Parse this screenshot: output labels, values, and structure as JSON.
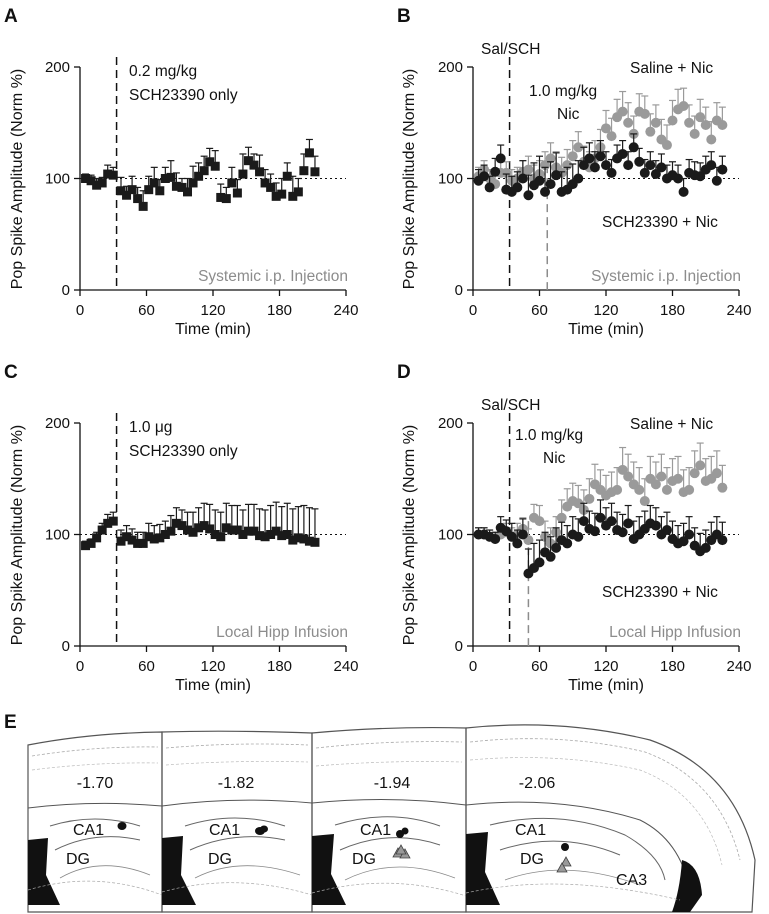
{
  "colors": {
    "black_series": "#1a1a1a",
    "gray_series": "#9a9a9a",
    "annotation_gray": "#8c8c8c",
    "outline": "#555555"
  },
  "panel_letters": [
    "A",
    "B",
    "C",
    "D",
    "E"
  ],
  "chart_data": [
    {
      "panel": "A",
      "type": "scatter",
      "ylabel": "Pop Spike Amplitude (Norm %)",
      "xlabel": "Time (min)",
      "xlim": [
        0,
        240
      ],
      "ylim": [
        0,
        200
      ],
      "xticks": [
        0,
        60,
        120,
        180,
        240
      ],
      "yticks": [
        0,
        100,
        200
      ],
      "reference_line_y": 100,
      "event_line_x": 33,
      "annotations": [
        "0.2 mg/kg",
        "SCH23390 only"
      ],
      "footnote": "Systemic i.p. Injection",
      "series": [
        {
          "marker": "square",
          "color": "#1a1a1a",
          "x": [
            5,
            10,
            15,
            20,
            25,
            30,
            37,
            42,
            47,
            52,
            57,
            62,
            67,
            72,
            77,
            82,
            87,
            92,
            97,
            102,
            107,
            112,
            117,
            122,
            127,
            132,
            137,
            142,
            147,
            152,
            157,
            162,
            167,
            172,
            177,
            182,
            187,
            192,
            197,
            202,
            207,
            212
          ],
          "y": [
            100,
            98,
            94,
            96,
            104,
            103,
            89,
            85,
            90,
            82,
            75,
            90,
            96,
            89,
            100,
            101,
            93,
            92,
            88,
            96,
            102,
            107,
            115,
            111,
            83,
            82,
            96,
            87,
            104,
            116,
            112,
            106,
            96,
            92,
            84,
            86,
            102,
            84,
            88,
            107,
            123,
            106
          ],
          "err": [
            4,
            5,
            6,
            5,
            8,
            7,
            12,
            8,
            12,
            10,
            14,
            12,
            14,
            10,
            10,
            15,
            12,
            8,
            12,
            15,
            12,
            13,
            12,
            14,
            12,
            10,
            14,
            12,
            18,
            12,
            10,
            15,
            12,
            12,
            12,
            14,
            12,
            18,
            12,
            15,
            12,
            14
          ]
        }
      ]
    },
    {
      "panel": "B",
      "type": "scatter",
      "ylabel": "Pop Spike Amplitude (Norm %)",
      "xlabel": "Time (min)",
      "xlim": [
        0,
        240
      ],
      "ylim": [
        0,
        200
      ],
      "xticks": [
        0,
        60,
        120,
        180,
        240
      ],
      "yticks": [
        0,
        100,
        200
      ],
      "reference_line_y": 100,
      "event_line_x": 33,
      "event_line_2_x": 67,
      "event_label_1": "Sal/SCH",
      "event_label_2": [
        "1.0 mg/kg",
        "Nic"
      ],
      "footnote": "Systemic i.p. Injection",
      "series": [
        {
          "name": "Saline + Nic",
          "marker": "circle",
          "color": "#9a9a9a",
          "x": [
            5,
            10,
            15,
            20,
            25,
            30,
            35,
            40,
            45,
            50,
            55,
            60,
            65,
            70,
            75,
            80,
            85,
            90,
            95,
            100,
            105,
            110,
            115,
            120,
            125,
            130,
            135,
            140,
            145,
            150,
            155,
            160,
            165,
            170,
            175,
            180,
            185,
            190,
            195,
            200,
            205,
            210,
            215,
            220,
            225
          ],
          "y": [
            102,
            108,
            100,
            95,
            105,
            105,
            98,
            100,
            106,
            108,
            100,
            104,
            112,
            118,
            110,
            105,
            112,
            120,
            128,
            115,
            110,
            118,
            128,
            145,
            138,
            155,
            160,
            150,
            140,
            160,
            158,
            142,
            150,
            135,
            130,
            152,
            162,
            165,
            150,
            140,
            155,
            148,
            135,
            152,
            148
          ],
          "err": [
            8,
            8,
            8,
            10,
            10,
            10,
            10,
            10,
            10,
            12,
            12,
            12,
            12,
            14,
            14,
            14,
            14,
            14,
            14,
            14,
            14,
            16,
            16,
            16,
            16,
            16,
            18,
            18,
            16,
            16,
            16,
            16,
            16,
            18,
            18,
            18,
            18,
            16,
            16,
            16,
            16,
            16,
            16,
            16,
            16
          ]
        },
        {
          "name": "SCH23390 + Nic",
          "marker": "circle",
          "color": "#1a1a1a",
          "x": [
            5,
            10,
            15,
            20,
            25,
            30,
            35,
            40,
            45,
            50,
            55,
            60,
            65,
            70,
            75,
            80,
            85,
            90,
            95,
            100,
            105,
            110,
            115,
            120,
            125,
            130,
            135,
            140,
            145,
            150,
            155,
            160,
            165,
            170,
            175,
            180,
            185,
            190,
            195,
            200,
            205,
            210,
            215,
            220,
            225
          ],
          "y": [
            98,
            102,
            92,
            106,
            118,
            90,
            88,
            92,
            100,
            85,
            94,
            98,
            88,
            95,
            103,
            88,
            90,
            95,
            100,
            112,
            118,
            110,
            120,
            112,
            105,
            118,
            122,
            112,
            128,
            115,
            105,
            112,
            104,
            110,
            100,
            103,
            100,
            88,
            105,
            103,
            102,
            108,
            112,
            98,
            108
          ],
          "err": [
            10,
            10,
            10,
            12,
            12,
            14,
            14,
            14,
            16,
            18,
            20,
            22,
            22,
            20,
            20,
            18,
            20,
            18,
            16,
            16,
            14,
            14,
            14,
            12,
            12,
            12,
            12,
            12,
            12,
            12,
            12,
            12,
            12,
            12,
            12,
            12,
            12,
            12,
            12,
            12,
            12,
            12,
            12,
            12,
            12
          ]
        }
      ]
    },
    {
      "panel": "C",
      "type": "scatter",
      "ylabel": "Pop Spike Amplitude (Norm %)",
      "xlabel": "Time (min)",
      "xlim": [
        0,
        240
      ],
      "ylim": [
        0,
        200
      ],
      "xticks": [
        0,
        60,
        120,
        180,
        240
      ],
      "yticks": [
        0,
        100,
        200
      ],
      "reference_line_y": 100,
      "event_line_x": 33,
      "annotations": [
        "1.0 μg",
        "SCH23390 only"
      ],
      "footnote": "Local Hipp Infusion",
      "series": [
        {
          "marker": "square",
          "color": "#1a1a1a",
          "x": [
            5,
            10,
            15,
            20,
            25,
            30,
            37,
            42,
            47,
            52,
            57,
            62,
            67,
            72,
            77,
            82,
            87,
            92,
            97,
            102,
            107,
            112,
            117,
            122,
            127,
            132,
            137,
            142,
            147,
            152,
            157,
            162,
            167,
            172,
            177,
            182,
            187,
            192,
            197,
            202,
            207,
            212
          ],
          "y": [
            90,
            92,
            97,
            104,
            110,
            112,
            94,
            98,
            95,
            92,
            92,
            98,
            96,
            97,
            100,
            103,
            110,
            108,
            104,
            102,
            106,
            108,
            105,
            100,
            98,
            106,
            104,
            104,
            100,
            103,
            103,
            99,
            98,
            100,
            103,
            99,
            100,
            95,
            97,
            96,
            94,
            93
          ],
          "err": [
            4,
            4,
            5,
            6,
            8,
            8,
            10,
            10,
            10,
            10,
            10,
            12,
            12,
            12,
            12,
            14,
            14,
            14,
            16,
            18,
            18,
            20,
            22,
            22,
            22,
            22,
            22,
            22,
            22,
            24,
            24,
            24,
            24,
            26,
            26,
            26,
            28,
            28,
            28,
            30,
            30,
            30
          ]
        }
      ]
    },
    {
      "panel": "D",
      "type": "scatter",
      "ylabel": "Pop Spike Amplitude (Norm %)",
      "xlabel": "Time (min)",
      "xlim": [
        0,
        240
      ],
      "ylim": [
        0,
        200
      ],
      "xticks": [
        0,
        60,
        120,
        180,
        240
      ],
      "yticks": [
        0,
        100,
        200
      ],
      "reference_line_y": 100,
      "event_line_x": 33,
      "event_line_2_x": 50,
      "event_label_1": "Sal/SCH",
      "event_label_2": [
        "1.0 mg/kg",
        "Nic"
      ],
      "footnote": "Local Hipp Infusion",
      "series": [
        {
          "name": "Saline + Nic",
          "marker": "circle",
          "color": "#9a9a9a",
          "x": [
            5,
            10,
            15,
            20,
            25,
            30,
            35,
            40,
            45,
            50,
            55,
            60,
            65,
            70,
            75,
            80,
            85,
            90,
            95,
            100,
            105,
            110,
            115,
            120,
            125,
            130,
            135,
            140,
            145,
            150,
            155,
            160,
            165,
            170,
            175,
            180,
            185,
            190,
            195,
            200,
            205,
            210,
            215,
            220,
            225
          ],
          "y": [
            100,
            100,
            98,
            96,
            100,
            102,
            98,
            100,
            105,
            95,
            115,
            112,
            98,
            92,
            102,
            115,
            125,
            130,
            128,
            122,
            132,
            145,
            140,
            135,
            138,
            140,
            158,
            152,
            145,
            140,
            130,
            150,
            145,
            152,
            140,
            148,
            150,
            138,
            140,
            155,
            162,
            148,
            150,
            155,
            142
          ],
          "err": [
            6,
            6,
            6,
            6,
            8,
            8,
            8,
            10,
            10,
            10,
            12,
            14,
            14,
            14,
            14,
            16,
            16,
            16,
            16,
            18,
            18,
            18,
            18,
            18,
            18,
            20,
            20,
            20,
            20,
            20,
            20,
            20,
            20,
            20,
            20,
            20,
            20,
            20,
            20,
            20,
            20,
            20,
            20,
            20,
            20
          ]
        },
        {
          "name": "SCH23390 + Nic",
          "marker": "circle",
          "color": "#1a1a1a",
          "x": [
            5,
            10,
            15,
            20,
            25,
            30,
            35,
            40,
            45,
            50,
            55,
            60,
            65,
            70,
            75,
            80,
            85,
            90,
            95,
            100,
            105,
            110,
            115,
            120,
            125,
            130,
            135,
            140,
            145,
            150,
            155,
            160,
            165,
            170,
            175,
            180,
            185,
            190,
            195,
            200,
            205,
            210,
            215,
            220,
            225
          ],
          "y": [
            100,
            100,
            98,
            96,
            106,
            103,
            98,
            92,
            100,
            65,
            70,
            75,
            84,
            80,
            88,
            95,
            92,
            100,
            98,
            112,
            105,
            103,
            115,
            108,
            112,
            104,
            102,
            110,
            96,
            100,
            105,
            110,
            108,
            100,
            104,
            96,
            92,
            94,
            100,
            90,
            85,
            88,
            95,
            100,
            95
          ],
          "err": [
            6,
            6,
            6,
            6,
            10,
            10,
            12,
            12,
            14,
            22,
            22,
            20,
            18,
            18,
            18,
            16,
            16,
            16,
            16,
            16,
            16,
            16,
            16,
            16,
            16,
            16,
            16,
            16,
            16,
            16,
            16,
            16,
            16,
            16,
            16,
            16,
            16,
            16,
            16,
            16,
            16,
            16,
            16,
            16,
            16
          ]
        }
      ]
    }
  ],
  "atlas": {
    "sections": [
      {
        "level": "-1.70"
      },
      {
        "level": "-1.82"
      },
      {
        "level": "-1.94"
      },
      {
        "level": "-2.06"
      }
    ],
    "region_labels": {
      "ca1": "CA1",
      "dg": "DG",
      "ca3": "CA3"
    }
  }
}
